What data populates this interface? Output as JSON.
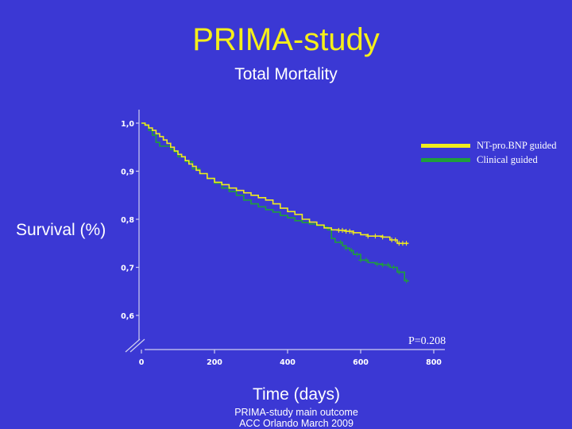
{
  "header": {
    "title": "PRIMA-study",
    "subtitle": "Total Mortality"
  },
  "footer": {
    "line1": "PRIMA-study main outcome",
    "line2": "ACC Orlando March 2009"
  },
  "colors": {
    "background": "#3b38d4",
    "title": "#f5ef1a",
    "nt_series": "#f0eb1e",
    "clinical_series": "#1f9e3c",
    "axis": "#cfcfef"
  },
  "chart_data": {
    "type": "line",
    "step": true,
    "xlabel": "Time (days)",
    "ylabel": "Survival (%)",
    "xlim": [
      0,
      800
    ],
    "ylim": [
      0.6,
      1.0
    ],
    "x_ticks": [
      0,
      200,
      400,
      600,
      800
    ],
    "x_tick_labels": [
      "0",
      "200",
      "400",
      "600",
      "800"
    ],
    "y_ticks": [
      1.0,
      0.9,
      0.8,
      0.7,
      0.6
    ],
    "y_tick_labels": [
      "1,0",
      "0,9",
      "0,8",
      "0,7",
      "0,6"
    ],
    "axis_break": true,
    "legend_position": "top-right",
    "annotation": "P=0.208",
    "series": [
      {
        "name": "NT-pro.BNP guided",
        "color": "#f0eb1e",
        "points": [
          [
            0,
            1.0
          ],
          [
            10,
            0.996
          ],
          [
            20,
            0.99
          ],
          [
            30,
            0.985
          ],
          [
            40,
            0.978
          ],
          [
            50,
            0.972
          ],
          [
            60,
            0.965
          ],
          [
            70,
            0.958
          ],
          [
            80,
            0.95
          ],
          [
            90,
            0.942
          ],
          [
            100,
            0.935
          ],
          [
            110,
            0.93
          ],
          [
            120,
            0.922
          ],
          [
            130,
            0.915
          ],
          [
            140,
            0.91
          ],
          [
            150,
            0.902
          ],
          [
            160,
            0.895
          ],
          [
            180,
            0.885
          ],
          [
            200,
            0.877
          ],
          [
            220,
            0.872
          ],
          [
            240,
            0.865
          ],
          [
            260,
            0.86
          ],
          [
            280,
            0.855
          ],
          [
            300,
            0.85
          ],
          [
            320,
            0.845
          ],
          [
            340,
            0.84
          ],
          [
            360,
            0.832
          ],
          [
            380,
            0.823
          ],
          [
            400,
            0.816
          ],
          [
            420,
            0.81
          ],
          [
            440,
            0.8
          ],
          [
            460,
            0.794
          ],
          [
            480,
            0.788
          ],
          [
            500,
            0.782
          ],
          [
            520,
            0.778
          ],
          [
            540,
            0.777
          ],
          [
            560,
            0.775
          ],
          [
            580,
            0.772
          ],
          [
            600,
            0.768
          ],
          [
            620,
            0.765
          ],
          [
            640,
            0.765
          ],
          [
            660,
            0.763
          ],
          [
            680,
            0.757
          ],
          [
            700,
            0.75
          ],
          [
            730,
            0.75
          ]
        ],
        "censor_x": [
          540,
          550,
          560,
          570,
          580,
          620,
          640,
          660,
          685,
          695,
          705,
          715,
          725
        ]
      },
      {
        "name": "Clinical guided",
        "color": "#1f9e3c",
        "points": [
          [
            0,
            1.0
          ],
          [
            10,
            0.995
          ],
          [
            20,
            0.985
          ],
          [
            30,
            0.975
          ],
          [
            40,
            0.96
          ],
          [
            50,
            0.952
          ],
          [
            70,
            0.952
          ],
          [
            80,
            0.945
          ],
          [
            90,
            0.94
          ],
          [
            100,
            0.93
          ],
          [
            120,
            0.92
          ],
          [
            140,
            0.905
          ],
          [
            160,
            0.895
          ],
          [
            180,
            0.885
          ],
          [
            200,
            0.875
          ],
          [
            220,
            0.865
          ],
          [
            240,
            0.858
          ],
          [
            260,
            0.85
          ],
          [
            280,
            0.84
          ],
          [
            300,
            0.832
          ],
          [
            320,
            0.826
          ],
          [
            340,
            0.82
          ],
          [
            360,
            0.815
          ],
          [
            380,
            0.808
          ],
          [
            400,
            0.803
          ],
          [
            420,
            0.797
          ],
          [
            440,
            0.793
          ],
          [
            460,
            0.79
          ],
          [
            480,
            0.787
          ],
          [
            500,
            0.784
          ],
          [
            510,
            0.778
          ],
          [
            520,
            0.76
          ],
          [
            530,
            0.752
          ],
          [
            550,
            0.745
          ],
          [
            560,
            0.74
          ],
          [
            570,
            0.735
          ],
          [
            580,
            0.727
          ],
          [
            600,
            0.715
          ],
          [
            620,
            0.71
          ],
          [
            640,
            0.707
          ],
          [
            660,
            0.705
          ],
          [
            680,
            0.7
          ],
          [
            700,
            0.69
          ],
          [
            720,
            0.672
          ],
          [
            730,
            0.67
          ]
        ],
        "censor_x": [
          545,
          560,
          575,
          590,
          600,
          615,
          645,
          660,
          675,
          690,
          705,
          725
        ]
      }
    ]
  }
}
